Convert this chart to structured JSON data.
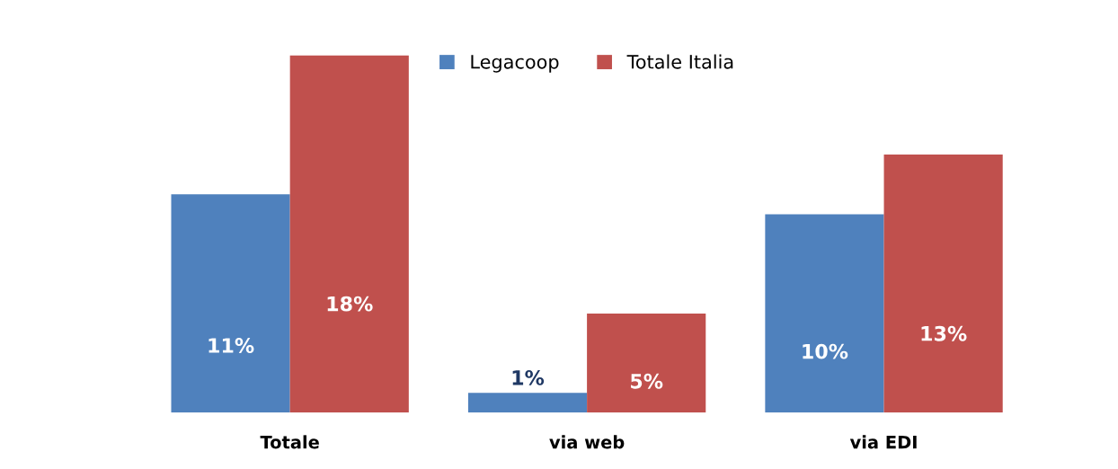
{
  "chart_data": {
    "type": "bar",
    "categories": [
      "Totale",
      "via web",
      "via EDI"
    ],
    "series": [
      {
        "name": "Legacoop",
        "color": "#4f81bd",
        "values": [
          11,
          1,
          10
        ],
        "value_labels": [
          "11%",
          "1%",
          "10%"
        ]
      },
      {
        "name": "Totale Italia",
        "color": "#c0504d",
        "values": [
          18,
          5,
          13
        ],
        "value_labels": [
          "18%",
          "5%",
          "13%"
        ]
      }
    ],
    "legend": "top",
    "grid": false
  }
}
